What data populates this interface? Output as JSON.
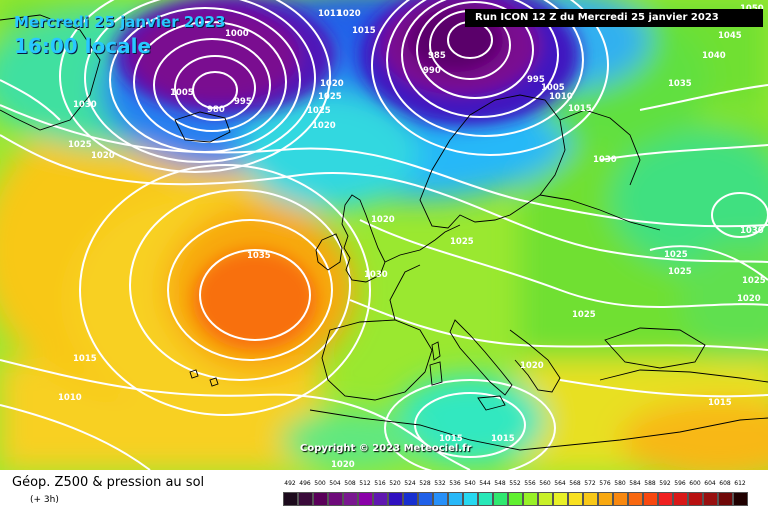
{
  "header": {
    "date": "Mercredi 25 janvier 2023",
    "time": "16:00 locale",
    "run_info": "Run ICON 12 Z du Mercredi 25 janvier 2023"
  },
  "copyright": "Copyright © 2023 Meteociel.fr",
  "footer": {
    "title": "Géop. Z500 & pression au sol",
    "subtitle": "(+ 3h)"
  },
  "legend": {
    "ticks": [
      "492",
      "496",
      "500",
      "504",
      "508",
      "512",
      "516",
      "520",
      "524",
      "528",
      "532",
      "536",
      "540",
      "544",
      "548",
      "552",
      "556",
      "560",
      "564",
      "568",
      "572",
      "576",
      "580",
      "584",
      "588",
      "592",
      "596",
      "600",
      "604",
      "608",
      "612"
    ],
    "colors": [
      "#1c0a1c",
      "#3a0a3a",
      "#5a005a",
      "#6e0a7a",
      "#7a1890",
      "#8a00a8",
      "#6018b0",
      "#3010c0",
      "#1830d0",
      "#2060e8",
      "#2890f8",
      "#28b8f8",
      "#28d8f0",
      "#28e8b8",
      "#30e870",
      "#60f030",
      "#98f028",
      "#c8f028",
      "#e8f028",
      "#f8e020",
      "#f8c818",
      "#f8a810",
      "#f88810",
      "#f86810",
      "#f84810",
      "#f02020",
      "#d81818",
      "#b81010",
      "#981010",
      "#700808",
      "#200000"
    ]
  },
  "pressure_labels": [
    {
      "text": "1000"
    },
    {
      "text": "1011"
    },
    {
      "text": "1020"
    },
    {
      "text": "1015"
    },
    {
      "text": "1005"
    },
    {
      "text": "980"
    },
    {
      "text": "995"
    },
    {
      "text": "1030"
    },
    {
      "text": "1025"
    },
    {
      "text": "1020"
    },
    {
      "text": "1020"
    },
    {
      "text": "1025"
    },
    {
      "text": "1025"
    },
    {
      "text": "1020"
    },
    {
      "text": "985"
    },
    {
      "text": "990"
    },
    {
      "text": "995"
    },
    {
      "text": "1005"
    },
    {
      "text": "1010"
    },
    {
      "text": "1015"
    },
    {
      "text": "1035"
    },
    {
      "text": "1040"
    },
    {
      "text": "1045"
    },
    {
      "text": "1050"
    },
    {
      "text": "1030"
    },
    {
      "text": "1020"
    },
    {
      "text": "1025"
    },
    {
      "text": "1035"
    },
    {
      "text": "1030"
    },
    {
      "text": "1025"
    },
    {
      "text": "1025"
    },
    {
      "text": "1025"
    },
    {
      "text": "1030"
    },
    {
      "text": "1025"
    },
    {
      "text": "1020"
    },
    {
      "text": "1015"
    },
    {
      "text": "1010"
    },
    {
      "text": "1020"
    },
    {
      "text": "1015"
    },
    {
      "text": "1015"
    },
    {
      "text": "1015"
    },
    {
      "text": "1020"
    }
  ],
  "colors": {
    "isoline": "#ffffff",
    "coastline": "#000000",
    "low_core": "#5a006a",
    "high_core": "#f86a10"
  }
}
